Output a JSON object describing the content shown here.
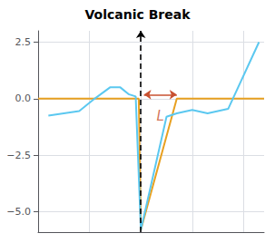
{
  "chart_data": {
    "type": "line",
    "title": "Volcanic Break",
    "xlim": [
      -10,
      12
    ],
    "xticks": [
      -10,
      -5,
      0,
      5,
      10
    ],
    "ylim": [
      -5.9,
      3.0
    ],
    "yticks": [
      2.5,
      {
        "value": 0.0,
        "label": "0.0"
      },
      {
        "value": -2.5,
        "label": "−2.5"
      },
      {
        "value": -5.0,
        "label": "−5.0"
      }
    ],
    "tick_labels": "y",
    "grid": true,
    "series": [
      {
        "color": "#e8a020",
        "x": [
          -10,
          -2.5,
          -0.2,
          0.0,
          3.5,
          8.0,
          12
        ],
        "values": [
          0.0,
          0.0,
          0.0,
          -5.8,
          0.0,
          0.0,
          0.0
        ]
      },
      {
        "color": "#5bc8f0",
        "x": [
          -9,
          -6,
          -4.5,
          -3,
          -2,
          -1.2,
          -0.5,
          0.0,
          2.5,
          3.5,
          5.0,
          6.5,
          7.5,
          8.5,
          11.5
        ],
        "values": [
          -0.75,
          -0.55,
          0.0,
          0.5,
          0.5,
          0.2,
          0.1,
          -5.8,
          -0.8,
          -0.65,
          -0.5,
          -0.65,
          -0.55,
          -0.45,
          2.5
        ]
      }
    ],
    "annotations": [
      {
        "type": "vline",
        "x": 0,
        "line_style": "dashed",
        "color": "#000000"
      },
      {
        "type": "arrow",
        "x": [
          0.3,
          3.5
        ],
        "y": 0.18,
        "color": "#c85030"
      },
      {
        "type": "text",
        "text": "L",
        "x": 1.9,
        "y": -0.45,
        "color": "#c85030"
      }
    ]
  }
}
